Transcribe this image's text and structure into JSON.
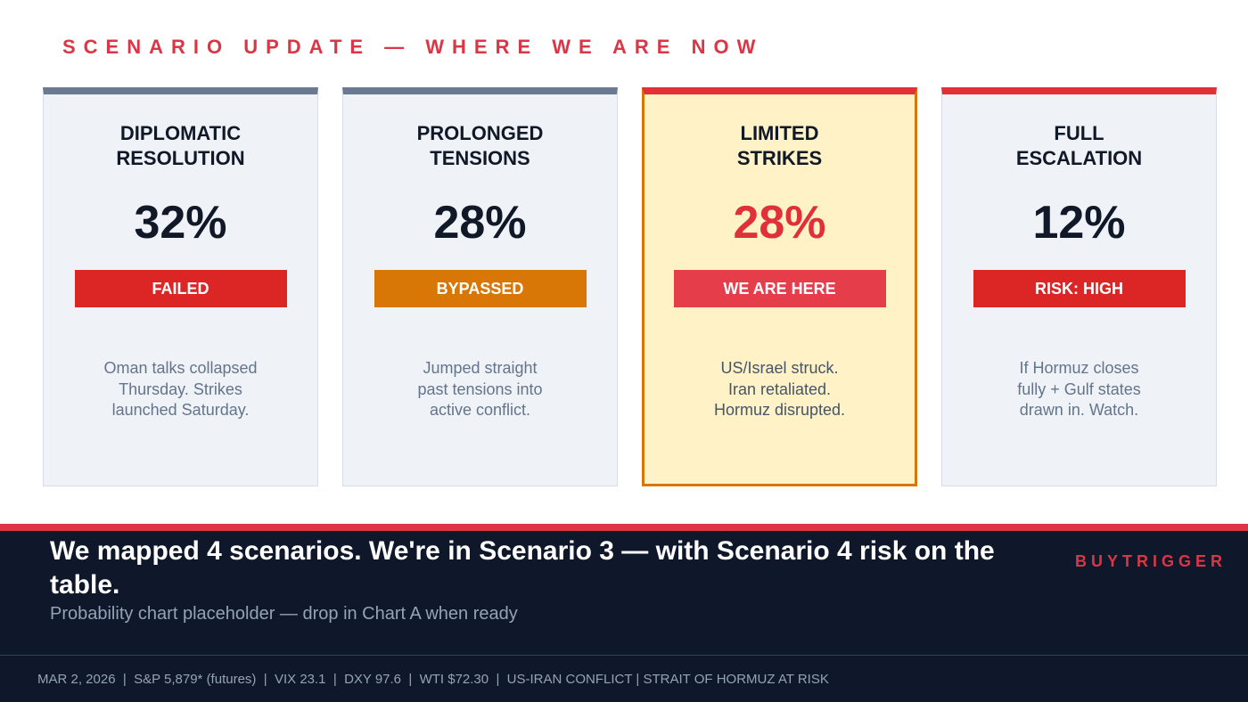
{
  "header": {
    "title": "SCENARIO UPDATE — WHERE WE ARE NOW"
  },
  "cards": [
    {
      "title_lines": [
        "DIPLOMATIC",
        "RESOLUTION"
      ],
      "probability": "32%",
      "status": "FAILED",
      "description_lines": [
        "Oman talks collapsed",
        "Thursday. Strikes",
        "launched Saturday."
      ]
    },
    {
      "title_lines": [
        "PROLONGED",
        "TENSIONS"
      ],
      "probability": "28%",
      "status": "BYPASSED",
      "description_lines": [
        "Jumped straight",
        "past tensions into",
        "active conflict."
      ]
    },
    {
      "title_lines": [
        "LIMITED",
        "STRIKES"
      ],
      "probability": "28%",
      "status": "WE ARE HERE",
      "description_lines": [
        "US/Israel struck.",
        "Iran retaliated.",
        "Hormuz disrupted."
      ]
    },
    {
      "title_lines": [
        "FULL",
        "ESCALATION"
      ],
      "probability": "12%",
      "status": "RISK: HIGH",
      "description_lines": [
        "If Hormuz closes",
        "fully + Gulf states",
        "drawn in. Watch."
      ]
    }
  ],
  "footer": {
    "headline": "We mapped 4 scenarios. We're in Scenario 3 — with Scenario 4 risk on the table.",
    "subtitle": "Probability chart placeholder — drop in Chart A when ready",
    "brand": "BUYTRIGGER",
    "ticker": "MAR 2, 2026  |  S&P 5,879* (futures)  |  VIX 23.1  |  DXY 97.6  |  WTI $72.30  |  US-IRAN CONFLICT | STRAIT OF HORMUZ AT RISK"
  }
}
